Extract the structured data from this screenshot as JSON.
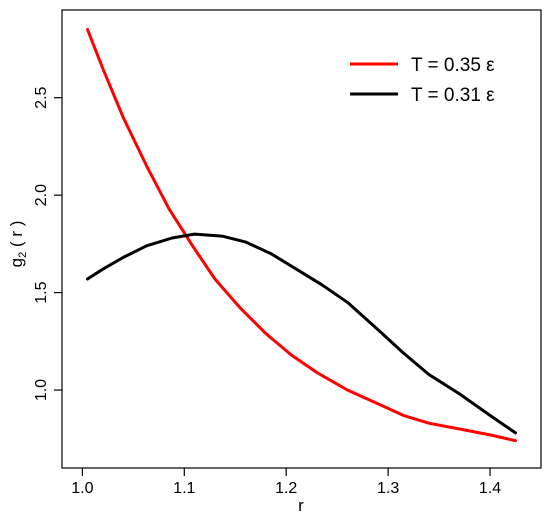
{
  "chart_data": {
    "type": "line",
    "title": "",
    "xlabel": "r",
    "ylabel": {
      "main": "g",
      "sub": "2",
      "rest": " ( r )"
    },
    "xlim": [
      0.98,
      1.45
    ],
    "ylim": [
      0.6,
      2.95
    ],
    "xticks": [
      1.0,
      1.1,
      1.2,
      1.3,
      1.4
    ],
    "xtick_labels": [
      "1.0",
      "1.1",
      "1.2",
      "1.3",
      "1.4"
    ],
    "yticks": [
      1.0,
      1.5,
      2.0,
      2.5
    ],
    "ytick_labels": [
      "1.0",
      "1.5",
      "2.0",
      "2.5"
    ],
    "grid": false,
    "legend_position": "top-right",
    "series": [
      {
        "name": "T = 0.35 ε",
        "color": "#ff0000",
        "x": [
          1.005,
          1.02,
          1.04,
          1.063,
          1.085,
          1.108,
          1.13,
          1.155,
          1.18,
          1.205,
          1.23,
          1.26,
          1.29,
          1.315,
          1.34,
          1.37,
          1.4,
          1.425
        ],
        "y": [
          2.85,
          2.65,
          2.4,
          2.15,
          1.93,
          1.74,
          1.57,
          1.42,
          1.29,
          1.18,
          1.09,
          1.0,
          0.93,
          0.87,
          0.83,
          0.8,
          0.77,
          0.74
        ]
      },
      {
        "name": "T = 0.31 ε",
        "color": "#000000",
        "x": [
          1.005,
          1.02,
          1.04,
          1.063,
          1.088,
          1.11,
          1.137,
          1.16,
          1.185,
          1.21,
          1.235,
          1.26,
          1.29,
          1.315,
          1.34,
          1.37,
          1.4,
          1.425
        ],
        "y": [
          1.57,
          1.62,
          1.68,
          1.74,
          1.78,
          1.8,
          1.79,
          1.76,
          1.7,
          1.62,
          1.54,
          1.45,
          1.31,
          1.19,
          1.08,
          0.98,
          0.87,
          0.78
        ]
      }
    ]
  }
}
